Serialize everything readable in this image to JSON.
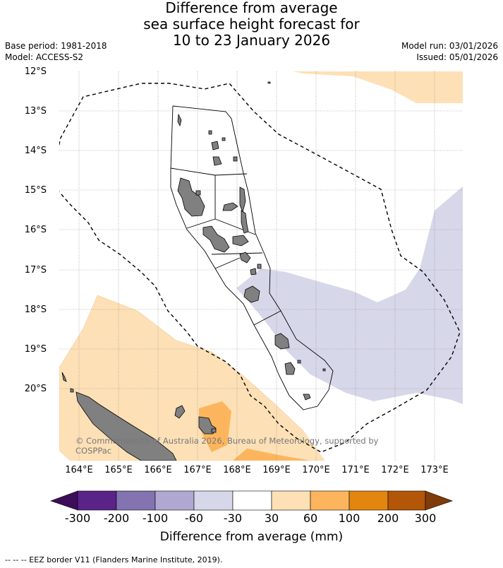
{
  "title": {
    "line1": "Difference from average",
    "line2": "sea surface height forecast for",
    "line3": "10 to 23 January 2026"
  },
  "meta_left": {
    "base_period": "Base period: 1981-2018",
    "model": "Model: ACCESS-S2"
  },
  "meta_right": {
    "model_run": "Model run: 03/01/2026",
    "issued": "Issued: 05/01/2026"
  },
  "axes": {
    "latitude_labels": [
      "12°S",
      "13°S",
      "14°S",
      "15°S",
      "16°S",
      "17°S",
      "18°S",
      "19°S",
      "20°S"
    ],
    "longitude_labels": [
      "164°E",
      "165°E",
      "166°E",
      "167°E",
      "168°E",
      "169°E",
      "170°E",
      "171°E",
      "172°E",
      "173°E"
    ]
  },
  "copyright": "© Commonwealth of Australia 2026, Bureau of Meteorology, supported by COSPPac",
  "colorbar": {
    "title": "Difference from average (mm)",
    "ticks": [
      "-300",
      "-200",
      "-100",
      "-60",
      "-30",
      "30",
      "60",
      "100",
      "200",
      "300"
    ],
    "colors": [
      "#3d0d5a",
      "#5a2387",
      "#8373b0",
      "#b0a8d1",
      "#d7d7ea",
      "#ffffff",
      "#fde0b6",
      "#fdb55d",
      "#e2860f",
      "#b35607",
      "#7f3b08"
    ]
  },
  "legend_note": "--  --  -- EEZ border V11 (Flanders Marine Institute, 2019)."
}
